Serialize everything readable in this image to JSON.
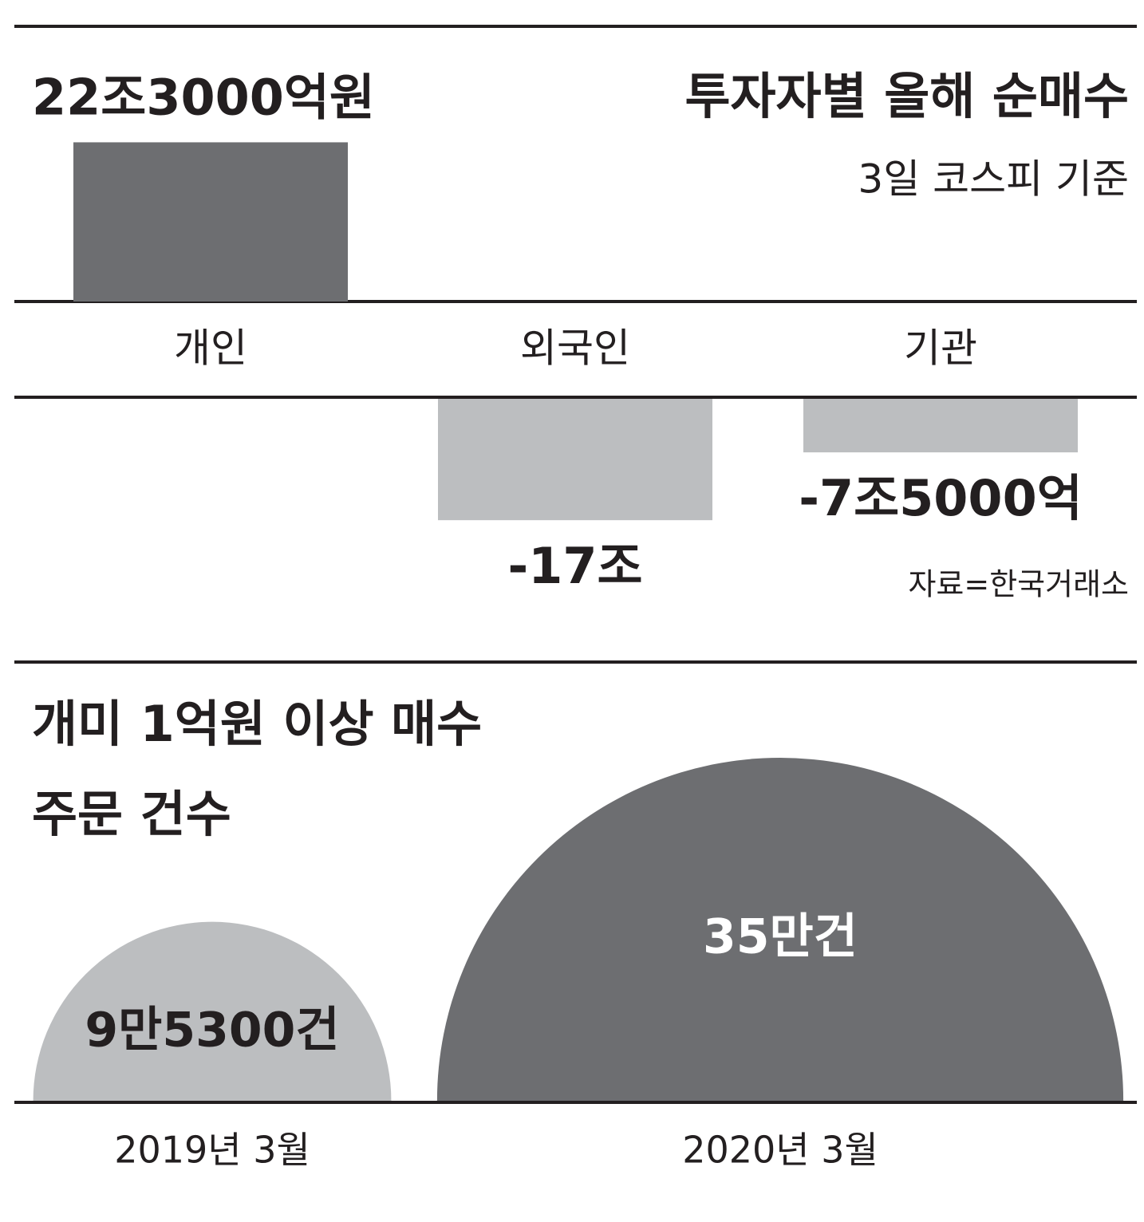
{
  "chart_data": [
    {
      "type": "bar",
      "title": "투자자별 올해 순매수",
      "subtitle": "3일 코스피 기준",
      "categories": [
        "개인",
        "외국인",
        "기관"
      ],
      "values": [
        22.3,
        -17,
        -7.5
      ],
      "value_labels": [
        "22조3000억원",
        "-17조",
        "-7조5000억"
      ],
      "colors": [
        "#6d6e71",
        "#bcbec0",
        "#bcbec0"
      ],
      "source": "자료=한국거래소"
    },
    {
      "type": "semicircle",
      "title": [
        "개미 1억원 이상 매수",
        "주문 건수"
      ],
      "categories": [
        "2019년 3월",
        "2020년 3월"
      ],
      "values": [
        95300,
        350000
      ],
      "value_labels": [
        "9만5300건",
        "35만건"
      ],
      "colors": [
        "#bcbec0",
        "#6d6e71"
      ]
    }
  ]
}
